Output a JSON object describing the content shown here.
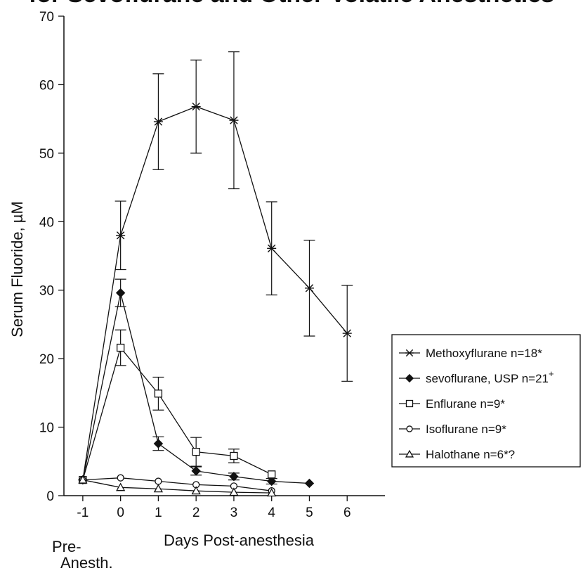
{
  "title": "for Sevoflurane and Other Volatile Anesthetics",
  "chart_data": {
    "type": "line",
    "ylabel": "Serum Fluoride, µM",
    "xlabel": "Days Post-anesthesia",
    "pre_label_line1": "Pre-",
    "pre_label_line2": "Anesth.",
    "xlim": [
      -1.5,
      7
    ],
    "ylim": [
      0,
      70
    ],
    "xticks": [
      -1,
      0,
      1,
      2,
      3,
      4,
      5,
      6
    ],
    "yticks": [
      0,
      10,
      20,
      30,
      40,
      50,
      60,
      70
    ],
    "grid": false,
    "legend_position": "right",
    "series": [
      {
        "name": "Methoxyflurane n=18*",
        "marker": "asterisk",
        "x": [
          -1,
          0,
          1,
          2,
          3,
          4,
          5,
          6
        ],
        "y": [
          2.3,
          38,
          54.6,
          56.8,
          54.8,
          36.1,
          30.3,
          23.7
        ],
        "err": [
          0,
          5,
          7,
          6.8,
          10,
          6.8,
          7,
          7
        ]
      },
      {
        "name": "sevoflurane, USP n=21",
        "name_superscript": "+",
        "marker": "filled-diamond",
        "x": [
          -1,
          0,
          1,
          2,
          3,
          4,
          5
        ],
        "y": [
          2.3,
          29.6,
          7.6,
          3.6,
          2.8,
          2.1,
          1.8
        ],
        "err": [
          0,
          2,
          1,
          0.6,
          0.5,
          0.4,
          0
        ]
      },
      {
        "name": "Enflurane n=9*",
        "marker": "open-square",
        "x": [
          -1,
          0,
          1,
          2,
          3,
          4
        ],
        "y": [
          2.3,
          21.6,
          14.9,
          6.4,
          5.8,
          3.1
        ],
        "err": [
          0,
          2.6,
          2.4,
          2.1,
          1,
          0
        ]
      },
      {
        "name": "Isoflurane n=9*",
        "marker": "open-circle",
        "x": [
          -1,
          0,
          1,
          2,
          3,
          4
        ],
        "y": [
          2.3,
          2.6,
          2.1,
          1.6,
          1.4,
          0.7
        ],
        "err": [
          0,
          0,
          0,
          0,
          0,
          0
        ]
      },
      {
        "name": "Halothane n=6*?",
        "marker": "open-triangle",
        "x": [
          -1,
          0,
          1,
          2,
          3,
          4
        ],
        "y": [
          2.3,
          1.2,
          1,
          0.7,
          0.5,
          0.4
        ],
        "err": [
          0,
          0,
          0,
          0,
          0,
          0
        ]
      }
    ]
  }
}
